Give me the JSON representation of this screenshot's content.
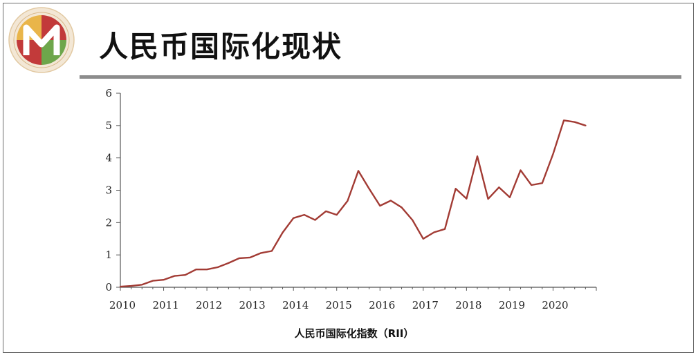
{
  "slide": {
    "title": "人民币国际化现状"
  },
  "colors": {
    "line": "#A23B34",
    "axis": "#555555",
    "logo_red": "#C23A3A",
    "logo_green": "#6EA64B",
    "logo_gold": "#E9B54A"
  },
  "chart_data": {
    "type": "line",
    "title": "",
    "xlabel": "人民币国际化指数（RII）",
    "ylabel": "",
    "ylim": [
      0,
      6
    ],
    "xlim": [
      2010,
      2021
    ],
    "yticks": [
      "0",
      "1",
      "2",
      "3",
      "4",
      "5",
      "6"
    ],
    "xticks": [
      "2010",
      "2011",
      "2012",
      "2013",
      "2014",
      "2015",
      "2016",
      "2017",
      "2018",
      "2019",
      "2020"
    ],
    "grid": false,
    "series": [
      {
        "name": "",
        "x": [
          2010.0,
          2010.25,
          2010.5,
          2010.75,
          2011.0,
          2011.25,
          2011.5,
          2011.75,
          2012.0,
          2012.25,
          2012.5,
          2012.75,
          2013.0,
          2013.25,
          2013.5,
          2013.75,
          2014.0,
          2014.25,
          2014.5,
          2014.75,
          2015.0,
          2015.25,
          2015.5,
          2015.75,
          2016.0,
          2016.25,
          2016.5,
          2016.75,
          2017.0,
          2017.25,
          2017.5,
          2017.75,
          2018.0,
          2018.25,
          2018.5,
          2018.75,
          2019.0,
          2019.25,
          2019.5,
          2019.75,
          2020.0,
          2020.25,
          2020.5,
          2020.75
        ],
        "values": [
          0.02,
          0.04,
          0.08,
          0.2,
          0.23,
          0.35,
          0.38,
          0.55,
          0.55,
          0.62,
          0.75,
          0.9,
          0.92,
          1.06,
          1.12,
          1.69,
          2.14,
          2.24,
          2.08,
          2.35,
          2.24,
          2.67,
          3.6,
          3.05,
          2.52,
          2.68,
          2.47,
          2.08,
          1.5,
          1.7,
          1.8,
          3.05,
          2.74,
          4.05,
          2.73,
          3.09,
          2.78,
          3.62,
          3.16,
          3.22,
          4.12,
          5.16,
          5.11,
          5.0
        ]
      }
    ]
  }
}
